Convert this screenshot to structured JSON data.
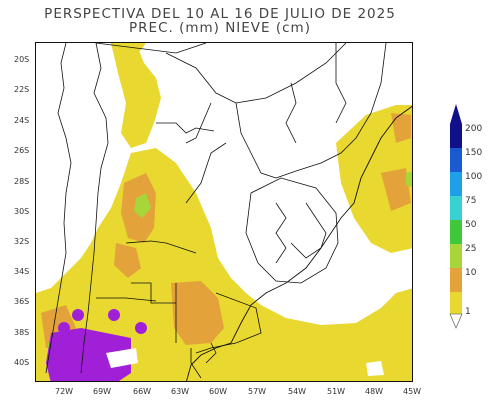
{
  "title": {
    "line1": "PERSPECTIVA DEL 10 AL 16 DE JULIO DE 2025",
    "line2": "PREC. (mm) NIEVE (cm)"
  },
  "axes": {
    "lat_labels": [
      "20S",
      "22S",
      "24S",
      "26S",
      "28S",
      "30S",
      "32S",
      "34S",
      "36S",
      "38S",
      "40S"
    ],
    "lon_labels": [
      "72W",
      "69W",
      "66W",
      "63W",
      "60W",
      "57W",
      "54W",
      "51W",
      "48W",
      "45W"
    ]
  },
  "legend": {
    "levels": [
      "1",
      "10",
      "25",
      "50",
      "75",
      "100",
      "150",
      "200"
    ],
    "colors": {
      "c1": "#e8d830",
      "c10": "#e4a23a",
      "c25": "#a6d63a",
      "c50": "#3ec83a",
      "c75": "#38d0d0",
      "c100": "#1ea0e8",
      "c150": "#1a5ad0",
      "c200": "#10108a",
      "snow": "#a020d8"
    }
  }
}
